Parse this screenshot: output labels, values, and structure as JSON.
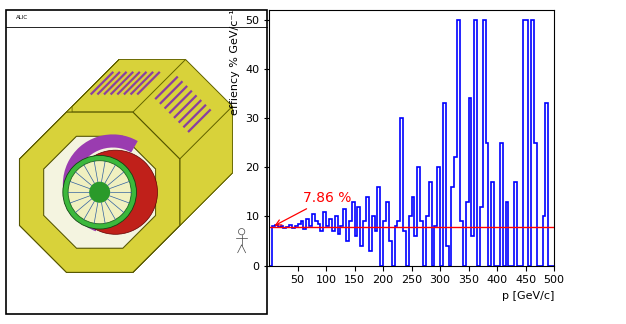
{
  "chart_data": {
    "type": "histogram",
    "xlabel": "p [GeV/c]",
    "ylabel": "effiency % GeV/c⁻¹",
    "bins": [
      0,
      5,
      10,
      15,
      20,
      25,
      30,
      35,
      40,
      45,
      50,
      55,
      60,
      65,
      70,
      75,
      80,
      85,
      90,
      95,
      100,
      105,
      110,
      115,
      120,
      125,
      130,
      135,
      140,
      145,
      150,
      155,
      160,
      165,
      170,
      175,
      180,
      185,
      190,
      195,
      200,
      205,
      210,
      215,
      220,
      225,
      230,
      235,
      240,
      245,
      250,
      255,
      260,
      265,
      270,
      275,
      280,
      285,
      290,
      295,
      300,
      305,
      310,
      315,
      320,
      325,
      330,
      335,
      340,
      345,
      350,
      355,
      360,
      365,
      370,
      375,
      380,
      385,
      390,
      395,
      400,
      405,
      410,
      415,
      420,
      425,
      430,
      435,
      440,
      445,
      450,
      455,
      460,
      465,
      470,
      475,
      480,
      485,
      490,
      495,
      500
    ],
    "values": [
      0,
      8,
      8.2,
      7.9,
      8.1,
      7.6,
      7.8,
      8.3,
      7.7,
      8.0,
      8.5,
      9,
      7.5,
      9.5,
      8,
      10.5,
      9,
      8.5,
      7,
      11,
      8,
      9.5,
      7,
      10,
      6.5,
      8,
      11.5,
      5,
      9,
      13,
      6,
      12,
      4,
      9,
      14,
      3,
      10,
      7,
      16,
      0,
      9,
      13,
      5,
      0,
      8,
      9,
      30,
      7,
      0,
      10,
      14,
      6,
      20,
      9,
      0,
      10,
      17,
      0,
      8,
      20,
      0,
      33,
      4,
      0,
      16,
      22,
      50,
      9,
      0,
      13,
      34,
      6,
      50,
      0,
      12,
      50,
      25,
      0,
      17,
      0,
      0,
      25,
      0,
      13,
      0,
      0,
      17,
      0,
      0,
      50,
      50,
      0,
      50,
      25,
      0,
      0,
      10,
      33,
      0,
      0
    ],
    "color": "#0000ff",
    "reference_line": {
      "value": 7.86,
      "label": "7.86 %",
      "color": "#ff0000"
    },
    "xlim": [
      0,
      500
    ],
    "xticks": [
      50,
      100,
      150,
      200,
      250,
      300,
      350,
      400,
      450,
      500
    ],
    "ylim": [
      0,
      52
    ],
    "yticks": [
      0,
      10,
      20,
      30,
      40,
      50
    ],
    "grid": false
  },
  "diagram": {
    "label": "ALIC"
  }
}
